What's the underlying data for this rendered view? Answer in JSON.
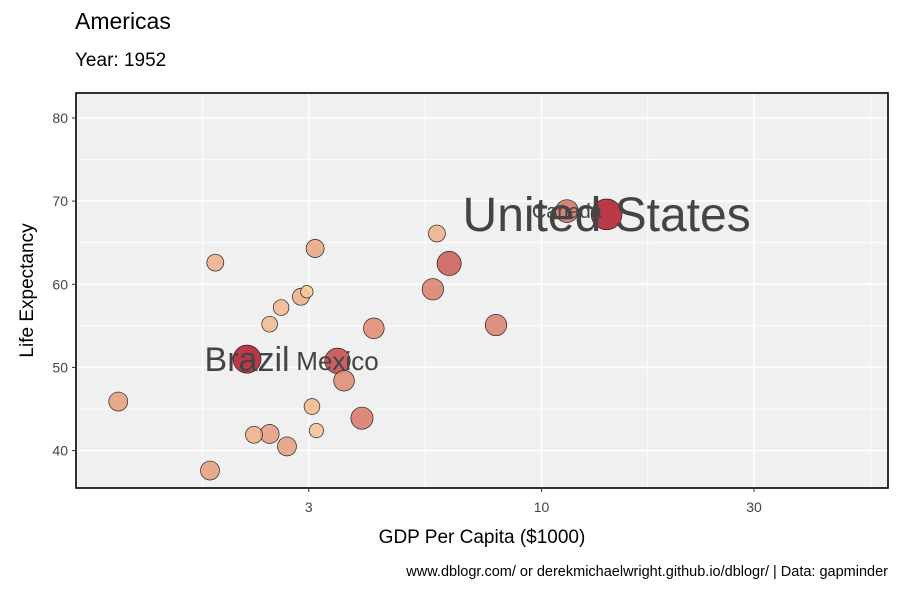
{
  "title": "Americas",
  "subtitle": "Year: 1952",
  "caption": "www.dblogr.com/ or derekmichaelwright.github.io/dblogr/ | Data: gapminder",
  "chart_data": {
    "type": "scatter",
    "xlabel": "GDP Per Capita ($1000)",
    "ylabel": "Life Expectancy",
    "x_scale": "log10",
    "xlim": [
      0.9,
      60
    ],
    "ylim": [
      35.5,
      83
    ],
    "x_ticks": [
      3,
      10,
      30
    ],
    "x_tick_labels": [
      "3",
      "10",
      "30"
    ],
    "y_ticks": [
      40,
      50,
      60,
      70,
      80
    ],
    "y_tick_labels": [
      "40",
      "50",
      "60",
      "70",
      "80"
    ],
    "grid": true,
    "legend": "none",
    "colors": {
      "small": "#fdd49e",
      "large": "#b2182b",
      "panel": "#f0f0f0",
      "grid": "#ffffff"
    },
    "points": [
      {
        "x": 1.12,
        "y": 45.9,
        "size": 0.3
      },
      {
        "x": 1.85,
        "y": 62.6,
        "size": 0.2
      },
      {
        "x": 1.8,
        "y": 37.6,
        "size": 0.3
      },
      {
        "x": 2.18,
        "y": 51.0,
        "size": 1.0
      },
      {
        "x": 2.26,
        "y": 41.9,
        "size": 0.2
      },
      {
        "x": 2.45,
        "y": 55.2,
        "size": 0.15
      },
      {
        "x": 2.6,
        "y": 57.2,
        "size": 0.15
      },
      {
        "x": 2.45,
        "y": 42.0,
        "size": 0.3
      },
      {
        "x": 2.68,
        "y": 40.5,
        "size": 0.3
      },
      {
        "x": 2.88,
        "y": 58.5,
        "size": 0.2
      },
      {
        "x": 2.97,
        "y": 59.1,
        "size": 0.05
      },
      {
        "x": 3.05,
        "y": 45.3,
        "size": 0.15
      },
      {
        "x": 3.1,
        "y": 64.3,
        "size": 0.25
      },
      {
        "x": 3.12,
        "y": 42.4,
        "size": 0.1
      },
      {
        "x": 3.48,
        "y": 50.8,
        "size": 0.75
      },
      {
        "x": 3.6,
        "y": 48.4,
        "size": 0.4
      },
      {
        "x": 3.95,
        "y": 43.9,
        "size": 0.5
      },
      {
        "x": 4.2,
        "y": 54.7,
        "size": 0.4
      },
      {
        "x": 5.7,
        "y": 59.4,
        "size": 0.45
      },
      {
        "x": 5.82,
        "y": 66.1,
        "size": 0.2
      },
      {
        "x": 6.2,
        "y": 62.5,
        "size": 0.65
      },
      {
        "x": 7.9,
        "y": 55.1,
        "size": 0.45
      },
      {
        "x": 11.4,
        "y": 68.8,
        "size": 0.55
      },
      {
        "x": 14.0,
        "y": 68.4,
        "size": 1.3
      }
    ],
    "labels": [
      {
        "text": "United States",
        "x": 14.0,
        "y": 68.4,
        "size": "large"
      },
      {
        "text": "Canada",
        "x": 11.4,
        "y": 68.8,
        "size": "small"
      },
      {
        "text": "Brazil",
        "x": 2.18,
        "y": 51.0,
        "size": "medium"
      },
      {
        "text": "Mexico",
        "x": 3.48,
        "y": 50.8,
        "size": "small"
      }
    ]
  }
}
